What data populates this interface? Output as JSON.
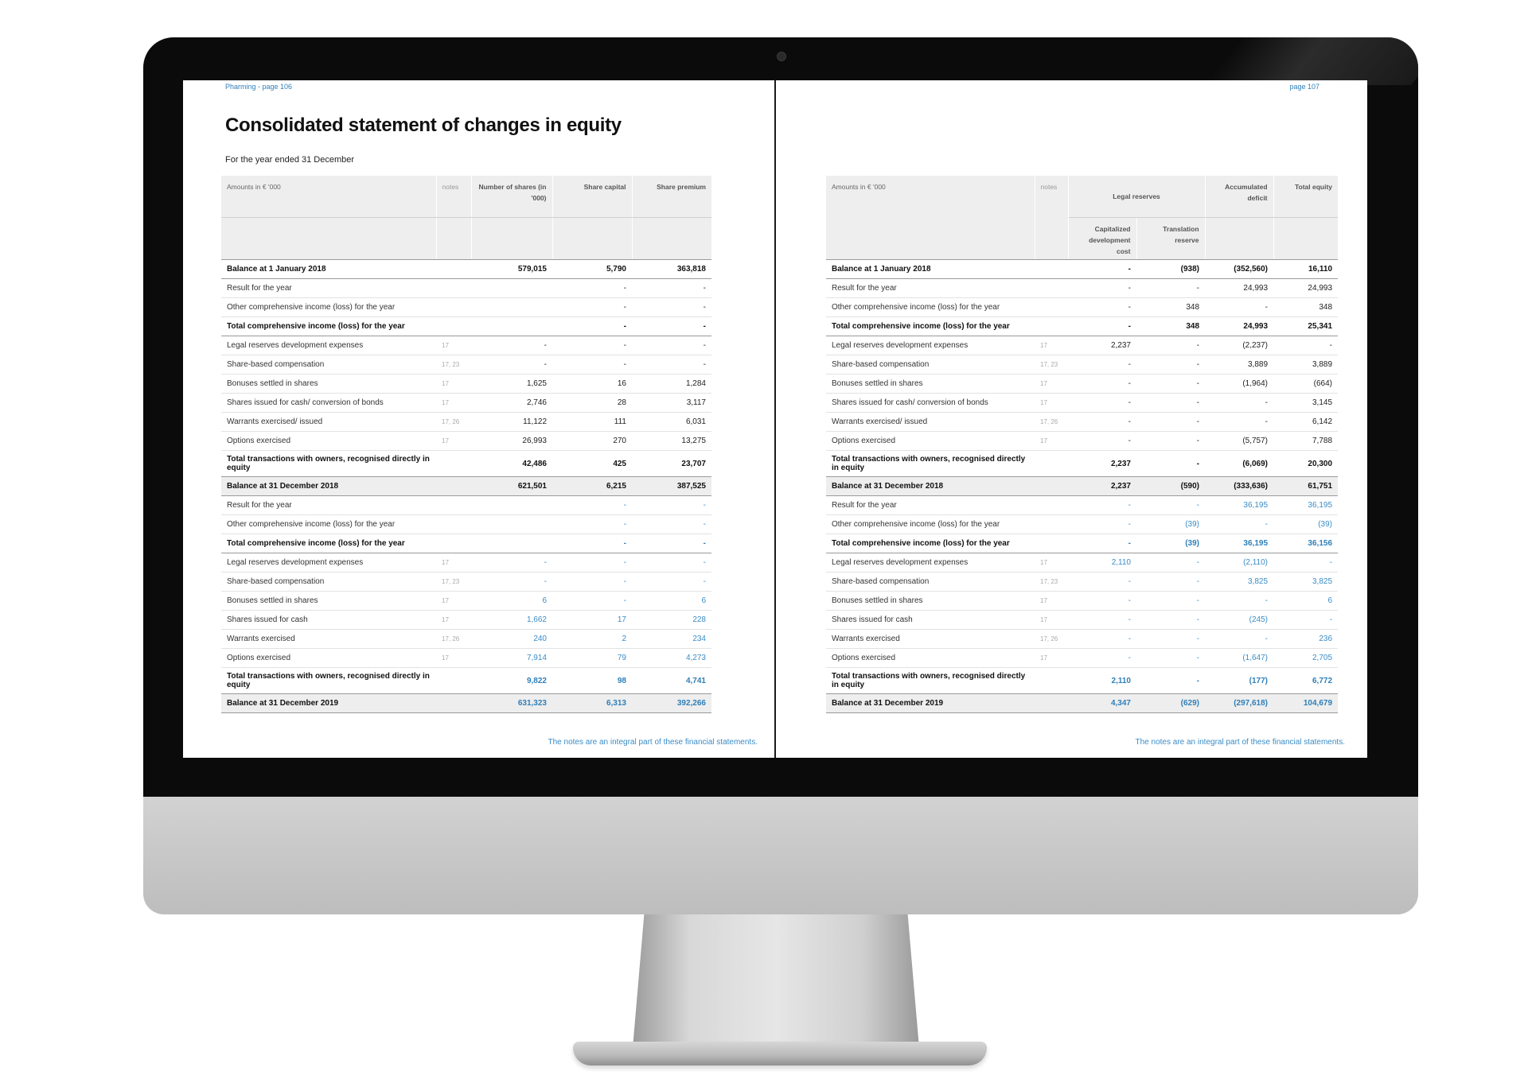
{
  "left_page": {
    "running_head": "Pharming  -  page 106",
    "title": "Consolidated statement of changes in equity",
    "subtitle": "For the year ended 31 December",
    "headers": [
      "Amounts in € '000",
      "notes",
      "Number of shares (in '000)",
      "Share capital",
      "Share premium"
    ],
    "rows": [
      {
        "label": "Balance at 1 January 2018",
        "note": "",
        "values": [
          "579,015",
          "5,790",
          "363,818"
        ],
        "bold": true,
        "tall": false,
        "shade": false,
        "blue": false
      },
      {
        "label": "Result for the year",
        "note": "",
        "values": [
          "",
          "-",
          "-"
        ],
        "bold": false,
        "tall": false,
        "shade": false,
        "blue": false
      },
      {
        "label": "Other comprehensive income (loss) for the year",
        "note": "",
        "values": [
          "",
          "-",
          "-"
        ],
        "bold": false,
        "tall": false,
        "shade": false,
        "blue": false
      },
      {
        "label": "Total comprehensive income (loss) for the year",
        "note": "",
        "values": [
          "",
          "-",
          "-"
        ],
        "bold": true,
        "tall": false,
        "shade": false,
        "blue": false
      },
      {
        "label": "Legal reserves development expenses",
        "note": "17",
        "values": [
          "-",
          "-",
          "-"
        ],
        "bold": false,
        "tall": false,
        "shade": false,
        "blue": false
      },
      {
        "label": "Share-based compensation",
        "note": "17, 23",
        "values": [
          "-",
          "-",
          "-"
        ],
        "bold": false,
        "tall": false,
        "shade": false,
        "blue": false
      },
      {
        "label": "Bonuses settled in shares",
        "note": "17",
        "values": [
          "1,625",
          "16",
          "1,284"
        ],
        "bold": false,
        "tall": false,
        "shade": false,
        "blue": false
      },
      {
        "label": "Shares issued for cash/ conversion of bonds",
        "note": "17",
        "values": [
          "2,746",
          "28",
          "3,117"
        ],
        "bold": false,
        "tall": false,
        "shade": false,
        "blue": false
      },
      {
        "label": "Warrants exercised/ issued",
        "note": "17, 26",
        "values": [
          "11,122",
          "111",
          "6,031"
        ],
        "bold": false,
        "tall": false,
        "shade": false,
        "blue": false
      },
      {
        "label": "Options exercised",
        "note": "17",
        "values": [
          "26,993",
          "270",
          "13,275"
        ],
        "bold": false,
        "tall": false,
        "shade": false,
        "blue": false
      },
      {
        "label": "Total transactions with owners, recognised directly in equity",
        "note": "",
        "values": [
          "42,486",
          "425",
          "23,707"
        ],
        "bold": true,
        "tall": true,
        "shade": false,
        "blue": false
      },
      {
        "label": "Balance at 31 December 2018",
        "note": "",
        "values": [
          "621,501",
          "6,215",
          "387,525"
        ],
        "bold": true,
        "tall": false,
        "shade": true,
        "blue": false
      },
      {
        "label": "Result for the year",
        "note": "",
        "values": [
          "",
          "-",
          "-"
        ],
        "bold": false,
        "tall": false,
        "shade": false,
        "blue": true
      },
      {
        "label": "Other comprehensive income (loss) for the year",
        "note": "",
        "values": [
          "",
          "-",
          "-"
        ],
        "bold": false,
        "tall": false,
        "shade": false,
        "blue": true
      },
      {
        "label": "Total comprehensive income (loss) for the year",
        "note": "",
        "values": [
          "",
          "-",
          "-"
        ],
        "bold": true,
        "tall": false,
        "shade": false,
        "blue": true
      },
      {
        "label": "Legal reserves development expenses",
        "note": "17",
        "values": [
          "-",
          "-",
          "-"
        ],
        "bold": false,
        "tall": false,
        "shade": false,
        "blue": true
      },
      {
        "label": "Share-based compensation",
        "note": "17, 23",
        "values": [
          "-",
          "-",
          "-"
        ],
        "bold": false,
        "tall": false,
        "shade": false,
        "blue": true
      },
      {
        "label": "Bonuses settled in shares",
        "note": "17",
        "values": [
          "6",
          "-",
          "6"
        ],
        "bold": false,
        "tall": false,
        "shade": false,
        "blue": true
      },
      {
        "label": "Shares issued for cash",
        "note": "17",
        "values": [
          "1,662",
          "17",
          "228"
        ],
        "bold": false,
        "tall": false,
        "shade": false,
        "blue": true
      },
      {
        "label": "Warrants exercised",
        "note": "17, 26",
        "values": [
          "240",
          "2",
          "234"
        ],
        "bold": false,
        "tall": false,
        "shade": false,
        "blue": true
      },
      {
        "label": "Options exercised",
        "note": "17",
        "values": [
          "7,914",
          "79",
          "4,273"
        ],
        "bold": false,
        "tall": false,
        "shade": false,
        "blue": true
      },
      {
        "label": "Total transactions with owners, recognised directly in equity",
        "note": "",
        "values": [
          "9,822",
          "98",
          "4,741"
        ],
        "bold": true,
        "tall": true,
        "shade": false,
        "blue": true
      },
      {
        "label": "Balance at 31 December 2019",
        "note": "",
        "values": [
          "631,323",
          "6,313",
          "392,266"
        ],
        "bold": true,
        "tall": false,
        "shade": true,
        "blue": true
      }
    ],
    "footnote": "The notes are an integral part of these financial statements."
  },
  "right_page": {
    "running_head": "page 107",
    "headers": [
      "Amounts in € '000",
      "notes",
      "Legal reserves",
      "Accumulated deficit",
      "Total equity"
    ],
    "subheaders": [
      "Capitalized development cost",
      "Translation reserve"
    ],
    "rows": [
      {
        "label": "Balance at 1 January 2018",
        "note": "",
        "values": [
          "-",
          "(938)",
          "(352,560)",
          "16,110"
        ],
        "bold": true,
        "tall": false,
        "shade": false,
        "blue": false
      },
      {
        "label": "Result for the year",
        "note": "",
        "values": [
          "-",
          "-",
          "24,993",
          "24,993"
        ],
        "bold": false,
        "tall": false,
        "shade": false,
        "blue": false
      },
      {
        "label": "Other comprehensive income (loss) for the year",
        "note": "",
        "values": [
          "-",
          "348",
          "-",
          "348"
        ],
        "bold": false,
        "tall": false,
        "shade": false,
        "blue": false
      },
      {
        "label": "Total comprehensive income (loss) for the year",
        "note": "",
        "values": [
          "-",
          "348",
          "24,993",
          "25,341"
        ],
        "bold": true,
        "tall": false,
        "shade": false,
        "blue": false
      },
      {
        "label": "Legal reserves development expenses",
        "note": "17",
        "values": [
          "2,237",
          "-",
          "(2,237)",
          "-"
        ],
        "bold": false,
        "tall": false,
        "shade": false,
        "blue": false
      },
      {
        "label": "Share-based compensation",
        "note": "17, 23",
        "values": [
          "-",
          "-",
          "3,889",
          "3,889"
        ],
        "bold": false,
        "tall": false,
        "shade": false,
        "blue": false
      },
      {
        "label": "Bonuses settled in shares",
        "note": "17",
        "values": [
          "-",
          "-",
          "(1,964)",
          "(664)"
        ],
        "bold": false,
        "tall": false,
        "shade": false,
        "blue": false
      },
      {
        "label": "Shares issued for cash/ conversion of bonds",
        "note": "17",
        "values": [
          "-",
          "-",
          "-",
          "3,145"
        ],
        "bold": false,
        "tall": false,
        "shade": false,
        "blue": false
      },
      {
        "label": "Warrants exercised/ issued",
        "note": "17, 26",
        "values": [
          "-",
          "-",
          "-",
          "6,142"
        ],
        "bold": false,
        "tall": false,
        "shade": false,
        "blue": false
      },
      {
        "label": "Options exercised",
        "note": "17",
        "values": [
          "-",
          "-",
          "(5,757)",
          "7,788"
        ],
        "bold": false,
        "tall": false,
        "shade": false,
        "blue": false
      },
      {
        "label": "Total transactions with owners, recognised directly in equity",
        "note": "",
        "values": [
          "2,237",
          "-",
          "(6,069)",
          "20,300"
        ],
        "bold": true,
        "tall": true,
        "shade": false,
        "blue": false
      },
      {
        "label": "Balance at 31 December 2018",
        "note": "",
        "values": [
          "2,237",
          "(590)",
          "(333,636)",
          "61,751"
        ],
        "bold": true,
        "tall": false,
        "shade": true,
        "blue": false
      },
      {
        "label": "Result for the year",
        "note": "",
        "values": [
          "-",
          "-",
          "36,195",
          "36,195"
        ],
        "bold": false,
        "tall": false,
        "shade": false,
        "blue": true
      },
      {
        "label": "Other comprehensive income (loss) for the year",
        "note": "",
        "values": [
          "-",
          "(39)",
          "-",
          "(39)"
        ],
        "bold": false,
        "tall": false,
        "shade": false,
        "blue": true
      },
      {
        "label": "Total comprehensive income (loss) for the year",
        "note": "",
        "values": [
          "-",
          "(39)",
          "36,195",
          "36,156"
        ],
        "bold": true,
        "tall": false,
        "shade": false,
        "blue": true
      },
      {
        "label": "Legal reserves development expenses",
        "note": "17",
        "values": [
          "2,110",
          "-",
          "(2,110)",
          "-"
        ],
        "bold": false,
        "tall": false,
        "shade": false,
        "blue": true
      },
      {
        "label": "Share-based compensation",
        "note": "17, 23",
        "values": [
          "-",
          "-",
          "3,825",
          "3,825"
        ],
        "bold": false,
        "tall": false,
        "shade": false,
        "blue": true
      },
      {
        "label": "Bonuses settled in shares",
        "note": "17",
        "values": [
          "-",
          "-",
          "-",
          "6"
        ],
        "bold": false,
        "tall": false,
        "shade": false,
        "blue": true
      },
      {
        "label": "Shares issued for cash",
        "note": "17",
        "values": [
          "-",
          "-",
          "(245)",
          "-"
        ],
        "bold": false,
        "tall": false,
        "shade": false,
        "blue": true
      },
      {
        "label": "Warrants exercised",
        "note": "17, 26",
        "values": [
          "-",
          "-",
          "-",
          "236"
        ],
        "bold": false,
        "tall": false,
        "shade": false,
        "blue": true
      },
      {
        "label": "Options exercised",
        "note": "17",
        "values": [
          "-",
          "-",
          "(1,647)",
          "2,705"
        ],
        "bold": false,
        "tall": false,
        "shade": false,
        "blue": true
      },
      {
        "label": "Total transactions with owners, recognised directly in equity",
        "note": "",
        "values": [
          "2,110",
          "-",
          "(177)",
          "6,772"
        ],
        "bold": true,
        "tall": true,
        "shade": false,
        "blue": true
      },
      {
        "label": "Balance at 31 December 2019",
        "note": "",
        "values": [
          "4,347",
          "(629)",
          "(297,618)",
          "104,679"
        ],
        "bold": true,
        "tall": false,
        "shade": true,
        "blue": true
      }
    ],
    "footnote": "The notes are an integral part of these financial statements."
  }
}
